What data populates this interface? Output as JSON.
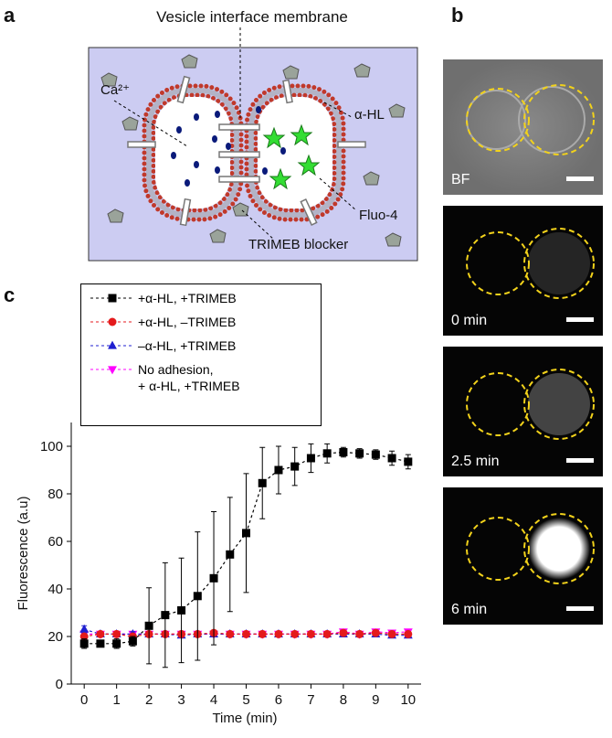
{
  "diagram": {
    "label": "a",
    "title": "Vesicle interface membrane",
    "callouts": [
      "Ca²⁺",
      "α-HL",
      "Fluo-4",
      "TRIMEB blocker"
    ]
  },
  "micrographs": {
    "label": "b",
    "frames": [
      "BF",
      "0 min",
      "2.5 min",
      "6 min"
    ]
  },
  "chart_data": {
    "type": "line",
    "panel_label": "c",
    "xlabel": "Time (min)",
    "ylabel": "Fluorescence (a.u)",
    "x": [
      0,
      0.5,
      1,
      1.5,
      2,
      2.5,
      3,
      3.5,
      4,
      4.5,
      5,
      5.5,
      6,
      6.5,
      7,
      7.5,
      8,
      8.5,
      9,
      9.5,
      10
    ],
    "series": [
      {
        "name": "+α-HL, +TRIMEB",
        "color": "#000000",
        "marker": "square",
        "values": [
          17,
          17,
          17,
          18,
          24.5,
          29,
          31,
          37,
          44.5,
          54.5,
          63.5,
          84.5,
          90,
          91.5,
          95,
          97,
          97.5,
          97,
          96.5,
          95,
          93.5
        ],
        "errors": [
          2,
          1,
          2,
          2,
          16,
          22,
          22,
          27,
          28,
          24,
          25,
          15,
          10,
          8,
          6,
          4,
          2,
          2,
          2,
          3,
          3
        ]
      },
      {
        "name": "+α-HL, –TRIMEB",
        "color": "#e41a1c",
        "marker": "circle",
        "values": [
          20,
          21,
          21,
          20,
          21,
          21,
          21,
          21,
          21.5,
          21,
          21,
          21,
          21,
          21,
          21,
          21,
          21.5,
          21,
          21.5,
          21,
          21
        ],
        "errors": [
          1,
          1,
          1,
          1,
          1,
          1,
          1,
          1,
          1,
          1,
          1,
          1,
          1,
          1,
          1,
          1,
          1,
          1,
          1,
          1,
          1
        ]
      },
      {
        "name": "–α-HL, +TRIMEB",
        "color": "#1f1fd0",
        "marker": "triangle-up",
        "values": [
          23,
          21,
          21,
          21,
          21,
          21,
          20.5,
          21,
          21,
          21,
          21,
          21,
          21,
          21,
          21,
          21,
          21,
          21,
          21,
          20.5,
          20.5
        ],
        "errors": [
          1.5,
          1,
          1,
          1,
          1,
          1,
          1,
          1,
          1,
          1,
          1,
          1,
          1,
          1,
          1,
          1,
          1,
          1,
          1,
          1,
          1
        ]
      },
      {
        "name": "No adhesion,\n+ α-HL, +TRIMEB",
        "color": "#ff00ff",
        "marker": "triangle-down",
        "values": [
          21,
          21,
          21,
          21,
          21,
          21,
          21,
          21,
          21,
          21,
          21,
          21,
          21,
          21,
          21,
          21,
          22,
          21,
          22,
          21.5,
          22
        ],
        "errors": [
          1,
          1,
          1,
          1,
          1,
          1,
          1,
          1,
          1,
          1,
          1,
          1,
          1,
          1,
          1,
          1,
          1,
          1,
          1,
          1,
          1
        ]
      }
    ],
    "xlim": [
      -0.4,
      10.4
    ],
    "ylim": [
      0,
      110
    ],
    "xticks": [
      0,
      1,
      2,
      3,
      4,
      5,
      6,
      7,
      8,
      9,
      10
    ],
    "yticks": [
      0,
      20,
      40,
      60,
      80,
      100
    ]
  }
}
